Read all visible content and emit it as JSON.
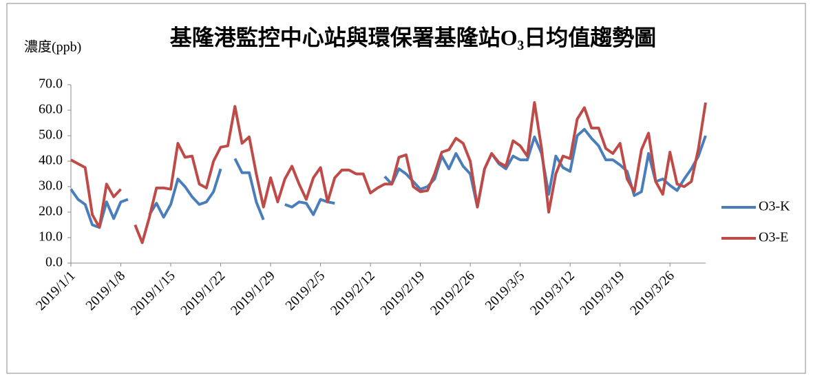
{
  "chart_data": {
    "type": "line",
    "title": "基隆港監控中心站與環保署基隆站O₃日均值趨勢圖",
    "y_label": "濃度(ppb)",
    "categories": [
      "2019/1/1",
      null,
      null,
      null,
      null,
      null,
      null,
      "2019/1/8",
      null,
      null,
      null,
      null,
      null,
      null,
      "2019/1/15",
      null,
      null,
      null,
      null,
      null,
      null,
      "2019/1/22",
      null,
      null,
      null,
      null,
      null,
      null,
      "2019/1/29",
      null,
      null,
      null,
      null,
      null,
      null,
      "2019/2/5",
      null,
      null,
      null,
      null,
      null,
      null,
      "2019/2/12",
      null,
      null,
      null,
      null,
      null,
      null,
      "2019/2/19",
      null,
      null,
      null,
      null,
      null,
      null,
      "2019/2/26",
      null,
      null,
      null,
      null,
      null,
      null,
      "2019/3/5",
      null,
      null,
      null,
      null,
      null,
      null,
      "2019/3/12",
      null,
      null,
      null,
      null,
      null,
      null,
      "2019/3/19",
      null,
      null,
      null,
      null,
      null,
      null,
      "2019/3/26",
      null,
      null,
      null,
      null,
      null
    ],
    "series": [
      {
        "name": "O3-K",
        "color": "#4a7ebb",
        "values": [
          29,
          25,
          23,
          15,
          14,
          24,
          17.5,
          24,
          25,
          null,
          null,
          19,
          23.5,
          18,
          23,
          33,
          30,
          26,
          23,
          24,
          28,
          37,
          null,
          41,
          35.5,
          35.5,
          24,
          17,
          null,
          null,
          23,
          22,
          24,
          23.5,
          19,
          25,
          24,
          23.5,
          null,
          null,
          null,
          null,
          null,
          null,
          34,
          31,
          37,
          35,
          32,
          29,
          30,
          33,
          42,
          37,
          43,
          38,
          35,
          22,
          37,
          43,
          39,
          37,
          42,
          40.5,
          40.5,
          49.5,
          43,
          27,
          42,
          37.5,
          36,
          50,
          52.5,
          49,
          46,
          40.5,
          40.5,
          38.5,
          36,
          26.5,
          28,
          43,
          32,
          33,
          30.5,
          28.5,
          33,
          37,
          42,
          50
        ]
      },
      {
        "name": "O3-E",
        "color": "#be4b48",
        "values": [
          40.5,
          39,
          37.5,
          19,
          14,
          31,
          26,
          29,
          null,
          15,
          8,
          18,
          29.5,
          29.5,
          29,
          47,
          41.5,
          42,
          31,
          29.5,
          40,
          45.5,
          46,
          61.5,
          47,
          49.5,
          35,
          22,
          33.5,
          24,
          33,
          38,
          31,
          25,
          33.5,
          37.5,
          24,
          33.5,
          36.5,
          36.5,
          35,
          35,
          27.5,
          29.5,
          31,
          31,
          41.5,
          42.5,
          30,
          28,
          28.5,
          35,
          43.5,
          44.5,
          49,
          47,
          40,
          22,
          37,
          43,
          39.5,
          38,
          48,
          46,
          42,
          63,
          45,
          20,
          35,
          42,
          41,
          56.5,
          61,
          53,
          53,
          45,
          43,
          47,
          33,
          28,
          44.5,
          51,
          32,
          27,
          43.5,
          31,
          30,
          32,
          45,
          63
        ]
      }
    ],
    "ylim": [
      0,
      70
    ],
    "yticks": [
      {
        "value": 0,
        "label": "0.0"
      },
      {
        "value": 10,
        "label": "10.0"
      },
      {
        "value": 20,
        "label": "20.0"
      },
      {
        "value": 30,
        "label": "30.0"
      },
      {
        "value": 40,
        "label": "40.0"
      },
      {
        "value": 50,
        "label": "50.0"
      },
      {
        "value": 60,
        "label": "60.0"
      },
      {
        "value": 70,
        "label": "70.0"
      }
    ],
    "grid": true,
    "legend": "right"
  }
}
